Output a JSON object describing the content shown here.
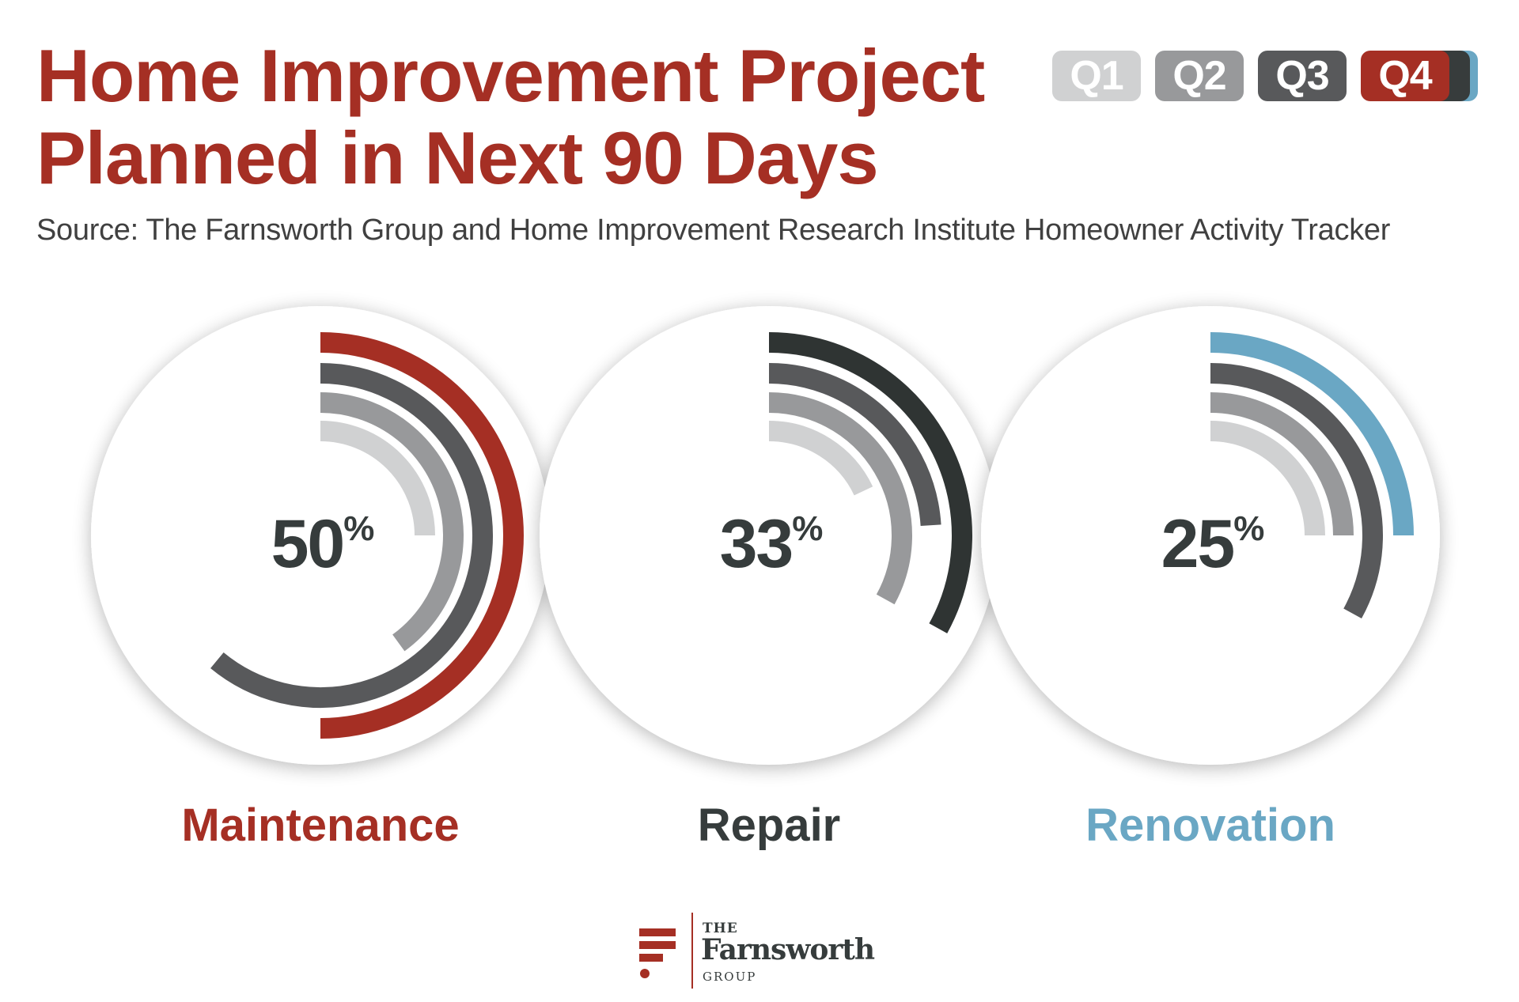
{
  "header": {
    "title_line1": "Home Improvement Project",
    "title_line2": "Planned in Next 90 Days",
    "subtitle": "Source: The Farnsworth Group and Home Improvement Research Institute Homeowner Activity Tracker"
  },
  "quarters": [
    {
      "label": "Q1",
      "color": "#d0d1d2"
    },
    {
      "label": "Q2",
      "color": "#98999b"
    },
    {
      "label": "Q3",
      "color": "#58595b"
    },
    {
      "label": "Q4",
      "color": "#a52f24"
    }
  ],
  "chart_data": {
    "type": "radial-bar",
    "series_names": [
      "Q1",
      "Q2",
      "Q3",
      "Q4"
    ],
    "max_value": 100,
    "categories": [
      {
        "name": "Maintenance",
        "display_value": "50",
        "unit": "%",
        "label_color": "#a52f24",
        "q4_color": "#a52f24",
        "values": [
          25,
          40,
          61,
          50
        ]
      },
      {
        "name": "Repair",
        "display_value": "33",
        "unit": "%",
        "label_color": "#363c3c",
        "q4_color": "#2f3433",
        "values": [
          18,
          33,
          24,
          33
        ]
      },
      {
        "name": "Renovation",
        "display_value": "25",
        "unit": "%",
        "label_color": "#6aa7c4",
        "q4_color": "#6aa7c4",
        "values": [
          25,
          25,
          33,
          25
        ]
      }
    ]
  },
  "logo": {
    "the": "THE",
    "name": "Farnsworth",
    "group": "GROUP"
  }
}
